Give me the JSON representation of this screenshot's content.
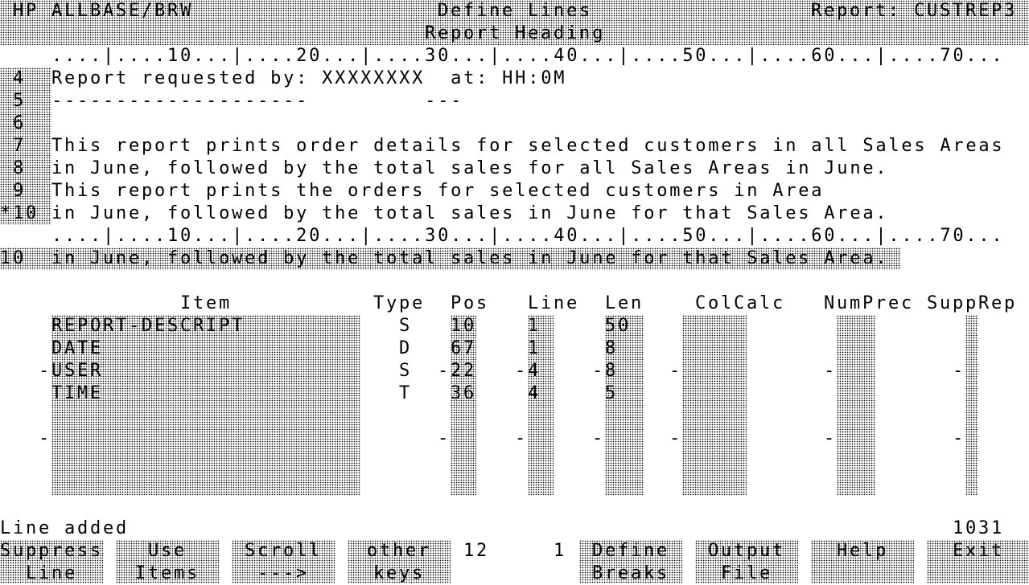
{
  "header": {
    "app": "HP ALLBASE/BRW",
    "screen": "Define Lines",
    "report": "Report: CUSTREP3",
    "section": "Report Heading"
  },
  "ruler": "....|....10...|....20...|....30...|....40...|....50...|....60...|....70...",
  "lines": [
    {
      "num": " 4",
      "text": "Report requested by: XXXXXXXX  at: HH:0M"
    },
    {
      "num": " 5",
      "text": "--------------------         ---"
    },
    {
      "num": " 6",
      "text": ""
    },
    {
      "num": " 7",
      "text": "This report prints order details for selected customers in all Sales Areas"
    },
    {
      "num": " 8",
      "text": "in June, followed by the total sales for all Sales Areas in June."
    },
    {
      "num": " 9",
      "text": "This report prints the orders for selected customers in Area"
    },
    {
      "num": "*10",
      "text": "in June, followed by the total sales in June for that Sales Area."
    }
  ],
  "edit_line": {
    "num": "10",
    "text": "in June, followed by the total sales in June for that Sales Area."
  },
  "table": {
    "headers": {
      "item": "Item",
      "type": "Type",
      "pos": "Pos",
      "line": "Line",
      "len": "Len",
      "colcalc": "ColCalc",
      "numprec": "NumPrec",
      "supprep": "SuppRep"
    },
    "rows": [
      {
        "item": "REPORT-DESCRIPT",
        "type": "S",
        "pos": "10",
        "line": "1",
        "len": "50"
      },
      {
        "item": "DATE",
        "type": "D",
        "pos": "67",
        "line": "1",
        "len": "8"
      },
      {
        "item": "USER",
        "type": "S",
        "pos": "-22",
        "line": "-4",
        "len": "-8"
      },
      {
        "item": "TIME",
        "type": "T",
        "pos": "36",
        "line": "4",
        "len": "5"
      }
    ],
    "marker": "-"
  },
  "status": {
    "message": "Line added",
    "code": "1031",
    "count1": "12",
    "count2": "1"
  },
  "softkeys": [
    {
      "l1": "Suppress",
      "l2": "Line"
    },
    {
      "l1": "Use",
      "l2": "Items"
    },
    {
      "l1": "Scroll",
      "l2": "--->"
    },
    {
      "l1": "other",
      "l2": "keys"
    },
    {
      "l1": "Define",
      "l2": "Breaks"
    },
    {
      "l1": "Output",
      "l2": "File"
    },
    {
      "l1": "Help",
      "l2": ""
    },
    {
      "l1": "Exit",
      "l2": ""
    }
  ]
}
